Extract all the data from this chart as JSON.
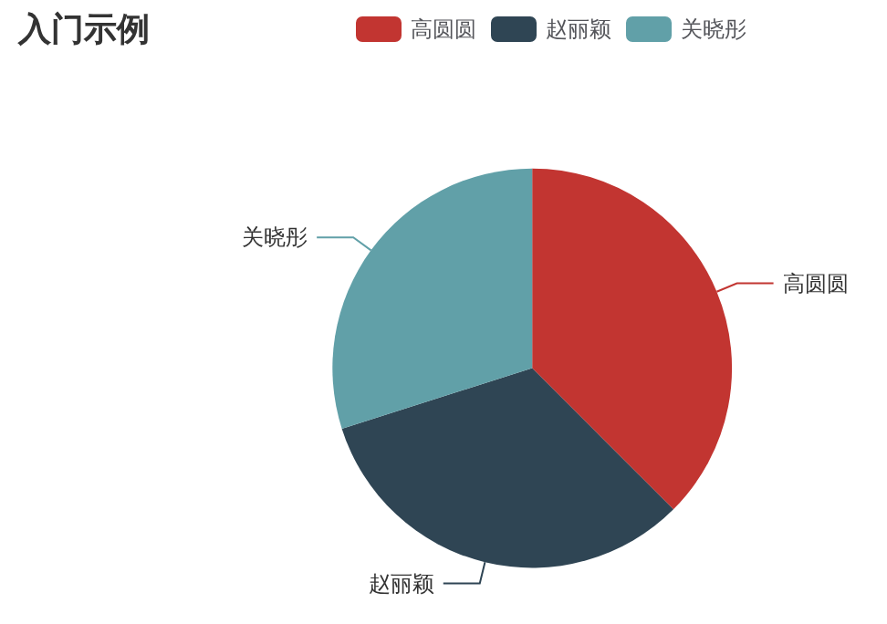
{
  "chart_data": {
    "type": "pie",
    "title": "入门示例",
    "categories": [
      "高圆圆",
      "赵丽颖",
      "关晓彤"
    ],
    "values": [
      37.5,
      32.6,
      29.9
    ],
    "colors": [
      "#c23531",
      "#2f4554",
      "#61a0a8"
    ],
    "legend": "top"
  }
}
